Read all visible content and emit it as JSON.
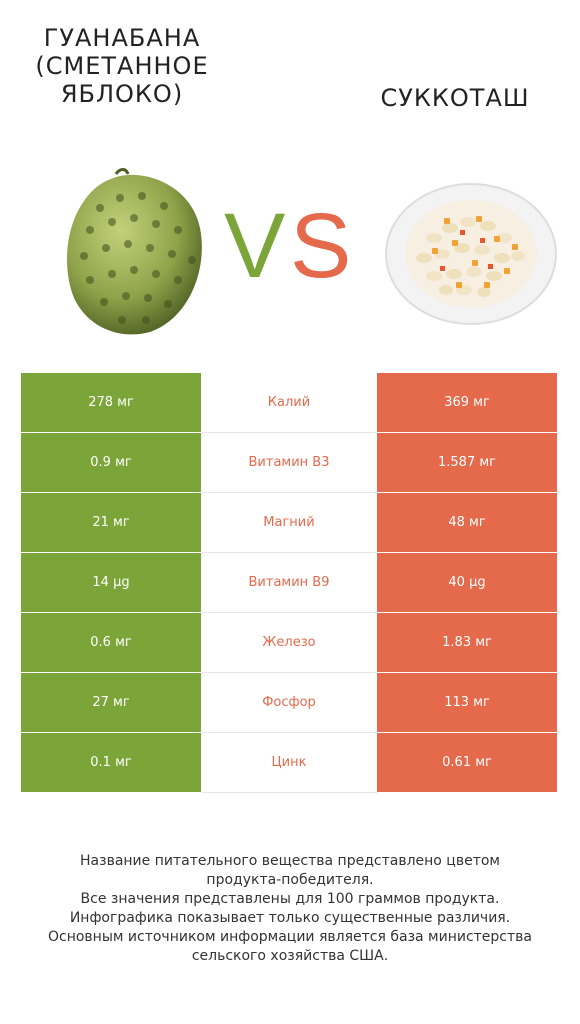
{
  "left_title": "ГУАНАБАНА (СМЕТАННОЕ ЯБЛОКО)",
  "right_title": "СУККОТАШ",
  "vs_v": "V",
  "vs_s": "S",
  "colors": {
    "left": "#7ca539",
    "right": "#e5694b"
  },
  "rows": [
    {
      "left": "278 мг",
      "name": "Калий",
      "right": "369 мг"
    },
    {
      "left": "0.9 мг",
      "name": "Витамин B3",
      "right": "1.587 мг"
    },
    {
      "left": "21 мг",
      "name": "Магний",
      "right": "48 мг"
    },
    {
      "left": "14 µg",
      "name": "Витамин B9",
      "right": "40 µg"
    },
    {
      "left": "0.6 мг",
      "name": "Железо",
      "right": "1.83 мг"
    },
    {
      "left": "27 мг",
      "name": "Фосфор",
      "right": "113 мг"
    },
    {
      "left": "0.1 мг",
      "name": "Цинк",
      "right": "0.61 мг"
    }
  ],
  "footer": [
    "Название питательного вещества представлено цветом",
    "продукта-победителя.",
    "Все значения представлены для 100 граммов продукта.",
    "Инфографика показывает только существенные различия.",
    "Основным источником информации является база министерства",
    "сельского хозяйства США."
  ]
}
